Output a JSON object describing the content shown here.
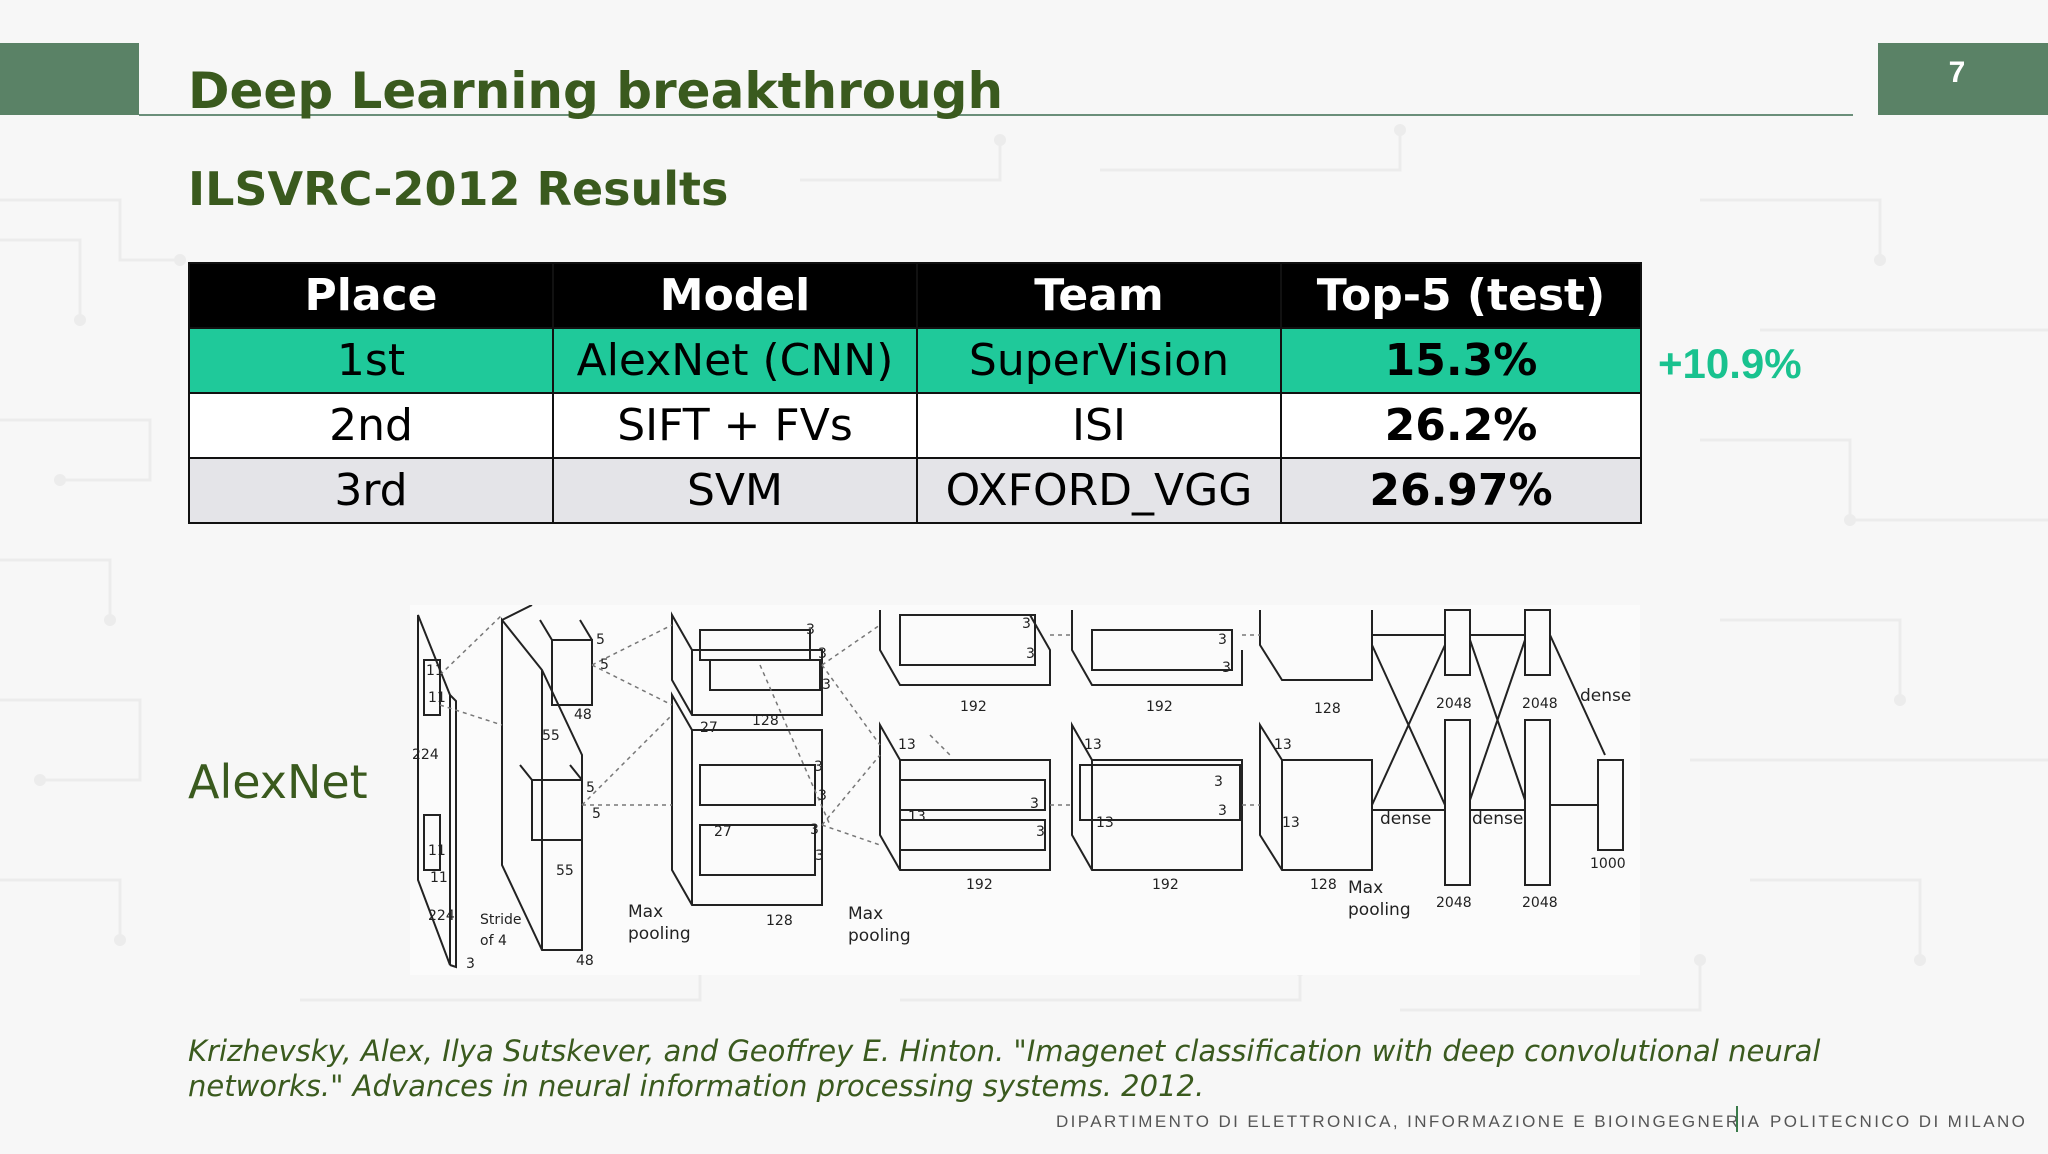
{
  "slide": {
    "page_number": "7",
    "title": "Deep Learning breakthrough",
    "subtitle": "ILSVRC-2012 Results"
  },
  "table": {
    "headers": [
      "Place",
      "Model",
      "Team",
      "Top-5 (test)"
    ],
    "rows": [
      [
        "1st",
        "AlexNet (CNN)",
        "SuperVision",
        "15.3%"
      ],
      [
        "2nd",
        "SIFT + FVs",
        "ISI",
        "26.2%"
      ],
      [
        "3rd",
        "SVM",
        "OXFORD_VGG",
        "26.97%"
      ]
    ]
  },
  "delta_label": "+10.9%",
  "alexnet_label": "AlexNet",
  "diagram": {
    "labels": {
      "n224": "224",
      "n11": "11",
      "n5": "5",
      "n3": "3",
      "n48": "48",
      "n55": "55",
      "n27": "27",
      "n13": "13",
      "n128": "128",
      "n192": "192",
      "n2048": "2048",
      "n1000": "1000",
      "stride": "Stride",
      "of4": "of 4",
      "max": "Max",
      "pooling": "pooling",
      "dense": "dense"
    }
  },
  "citation": "Krizhevsky, Alex, Ilya Sutskever, and Geoffrey E. Hinton. \"Imagenet classification with deep convolutional neural networks.\" Advances in neural information processing systems. 2012.",
  "footer": {
    "department": "DIPARTIMENTO DI ELETTRONICA, INFORMAZIONE E BIOINGEGNERIA",
    "university": "POLITECNICO DI MILANO"
  },
  "colors": {
    "title_green": "#3a5a1e",
    "accent_teal": "#1fc99a",
    "header_bar": "#5a8266"
  }
}
